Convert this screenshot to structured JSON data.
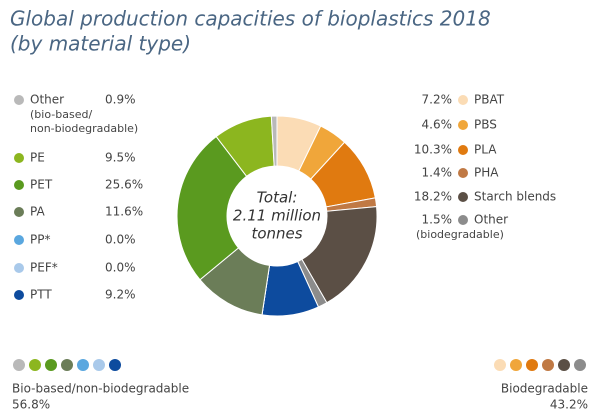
{
  "chart_data": {
    "type": "donut",
    "title": [
      "Global production capacities of bioplastics 2018",
      "(by material type)"
    ],
    "center_label": [
      "Total:",
      "2.11 million",
      "tonnes"
    ],
    "series": [
      {
        "name": "Bio-based/non-biodegradable",
        "total": 56.8,
        "total_label": "56.8%",
        "categories": [
          "Other",
          "PE",
          "PET",
          "PA",
          "PP*",
          "PEF*",
          "PTT"
        ],
        "category_notes": [
          [
            "(bio-based/",
            "non-biodegradable)"
          ],
          null,
          null,
          null,
          null,
          null,
          null
        ],
        "values": [
          0.9,
          9.5,
          25.6,
          11.6,
          0,
          0,
          9.2
        ],
        "value_labels": [
          "0.9%",
          "9.5%",
          "25.6%",
          "11.6%",
          "0.0%",
          "0.0%",
          "9.2%"
        ],
        "colors": [
          "#b9b9b9",
          "#8cb61f",
          "#5a9a1f",
          "#6b7d58",
          "#5aa7df",
          "#a9c9ea",
          "#0d4b9e"
        ]
      },
      {
        "name": "Biodegradable",
        "total": 43.2,
        "total_label": "43.2%",
        "categories": [
          "PBAT",
          "PBS",
          "PLA",
          "PHA",
          "Starch blends",
          "Other"
        ],
        "category_notes": [
          null,
          null,
          null,
          null,
          null,
          [
            "(biodegradable)"
          ]
        ],
        "values": [
          7.2,
          4.6,
          10.3,
          1.4,
          18.2,
          1.5
        ],
        "value_labels": [
          "7.2%",
          "4.6%",
          "10.3%",
          "1.4%",
          "18.2%",
          "1.5%"
        ],
        "colors": [
          "#fbdcb5",
          "#f0a63a",
          "#e07a10",
          "#c07944",
          "#5b4f45",
          "#8c8c8c"
        ]
      }
    ]
  }
}
